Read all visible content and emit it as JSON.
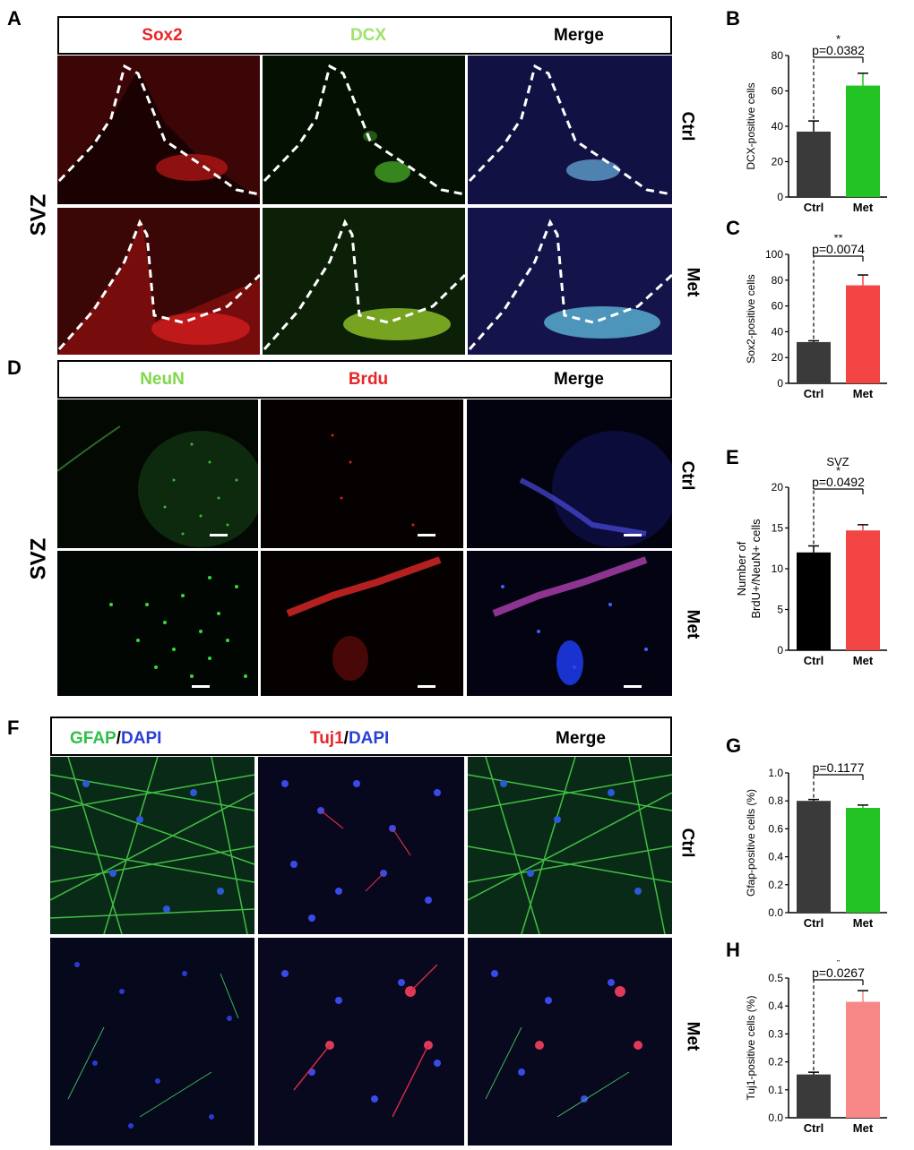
{
  "panel_letters": {
    "A": "A",
    "B": "B",
    "C": "C",
    "D": "D",
    "E": "E",
    "F": "F",
    "G": "G",
    "H": "H"
  },
  "row_labels": {
    "ctrl": "Ctrl",
    "met": "Met",
    "svz": "SVZ"
  },
  "panel_a": {
    "headers": {
      "sox2": "Sox2",
      "dcx": "DCX",
      "merge": "Merge"
    }
  },
  "panel_d": {
    "headers": {
      "neun": "NeuN",
      "brdu": "Brdu",
      "merge": "Merge"
    }
  },
  "panel_f": {
    "headers": {
      "gfap": "GFAP",
      "slash1": "/",
      "dapi1": "DAPI",
      "tuj1": "Tuj1",
      "slash2": "/",
      "dapi2": "DAPI",
      "merge": "Merge"
    }
  },
  "colors": {
    "red": "#e8262a",
    "green": "#7fd84a",
    "blue": "#2a3fd6",
    "bar_dark": "#3a3a3a",
    "bar_green": "#22c322",
    "bar_red": "#f44545",
    "bar_black": "#000000",
    "bar_pink": "#f88888"
  },
  "chart_data": [
    {
      "id": "B",
      "type": "bar",
      "categories": [
        "Ctrl",
        "Met"
      ],
      "values": [
        37,
        63
      ],
      "errors": [
        6,
        7
      ],
      "ylabel": "DCX-positive cells",
      "ylim": [
        0,
        80
      ],
      "yticks": [
        0,
        20,
        40,
        60,
        80
      ],
      "annotation": {
        "stars": "*",
        "p": "p=0.0382"
      }
    },
    {
      "id": "C",
      "type": "bar",
      "categories": [
        "Ctrl",
        "Met"
      ],
      "values": [
        32,
        76
      ],
      "errors": [
        1,
        8
      ],
      "ylabel": "Sox2-positive cells",
      "ylim": [
        0,
        100
      ],
      "yticks": [
        0,
        20,
        40,
        60,
        80,
        100
      ],
      "annotation": {
        "stars": "**",
        "p": "p=0.0074"
      }
    },
    {
      "id": "E",
      "type": "bar",
      "title": "SVZ",
      "categories": [
        "Ctrl",
        "Met"
      ],
      "values": [
        12,
        14.7
      ],
      "errors": [
        0.8,
        0.7
      ],
      "ylabel_line1": "Number of",
      "ylabel_line2": "BrdU+/NeuN+ cells",
      "ylim": [
        0,
        20
      ],
      "yticks": [
        0,
        5,
        10,
        15,
        20
      ],
      "annotation": {
        "stars": "*",
        "p": "p=0.0492"
      }
    },
    {
      "id": "G",
      "type": "bar",
      "categories": [
        "Ctrl",
        "Met"
      ],
      "values": [
        0.8,
        0.75
      ],
      "errors": [
        0.01,
        0.02
      ],
      "ylabel": "Gfap-positive cells (%)",
      "ylim": [
        0,
        1.0
      ],
      "yticks": [
        "0.0",
        "0.2",
        "0.4",
        "0.6",
        "0.8",
        "1.0"
      ],
      "annotation": {
        "stars": "",
        "p": "p=0.1177"
      }
    },
    {
      "id": "H",
      "type": "bar",
      "categories": [
        "Ctrl",
        "Met"
      ],
      "values": [
        0.155,
        0.415
      ],
      "errors": [
        0.008,
        0.04
      ],
      "ylabel": "Tuj1-positive cells (%)",
      "ylim": [
        0,
        0.5
      ],
      "yticks": [
        "0.0",
        "0.1",
        "0.2",
        "0.3",
        "0.4",
        "0.5"
      ],
      "annotation": {
        "stars": "*",
        "p": "p=0.0267"
      }
    }
  ]
}
